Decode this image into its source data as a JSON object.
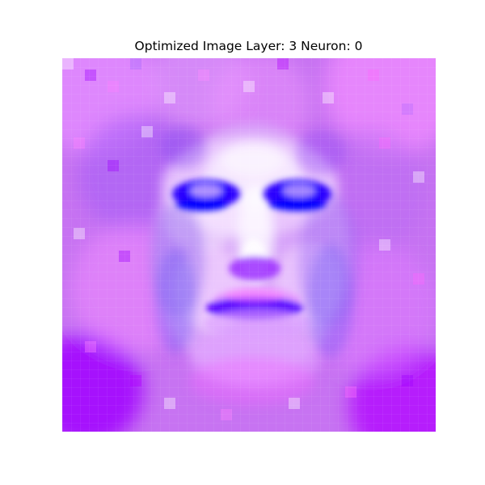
{
  "title": "Optimized Image Layer: 3 Neuron: 0",
  "image": {
    "subject": "pixelated-face",
    "colors": {
      "base": "#c770f2",
      "magenta": "#ff55ff",
      "pale": "#f7dcff",
      "blue": "#0000ff",
      "violet": "#7a55f0",
      "deep_violet": "#9a00ff"
    }
  }
}
